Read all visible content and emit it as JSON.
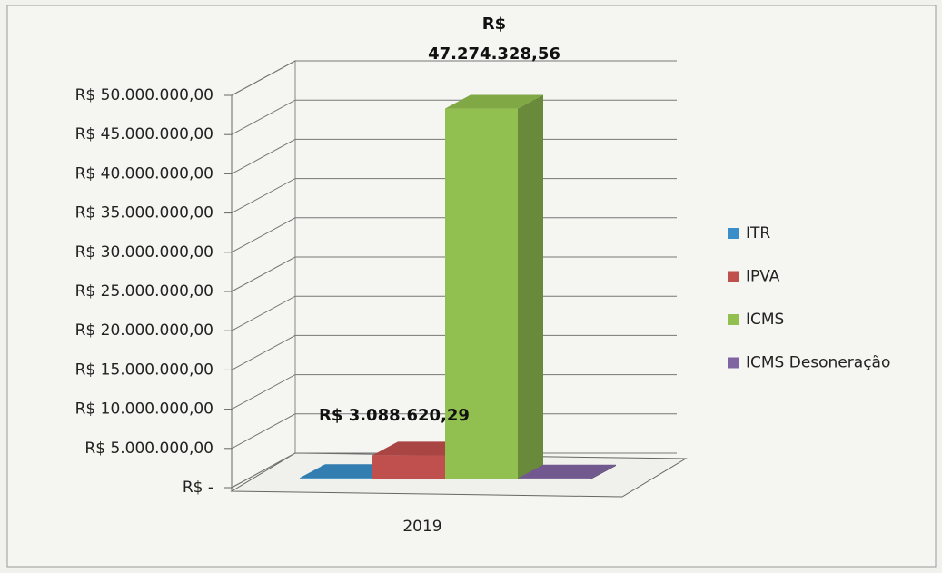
{
  "chart_data": {
    "type": "bar",
    "categories": [
      "2019"
    ],
    "series": [
      {
        "name": "ITR",
        "color": "#3a8fc8",
        "values": [
          200000
        ]
      },
      {
        "name": "IPVA",
        "color": "#c0504d",
        "values": [
          3088620.29
        ],
        "value_labels": [
          "R$ 3.088.620,29"
        ]
      },
      {
        "name": "ICMS",
        "color": "#92c050",
        "values": [
          47274328.56
        ],
        "value_labels": [
          "R$ 47.274.328,56"
        ]
      },
      {
        "name": "ICMS Desoneração",
        "color": "#8064a2",
        "values": [
          150000
        ]
      }
    ],
    "ylim": [
      0,
      50000000
    ],
    "yticks": [
      {
        "value": 0,
        "label": "R$ -"
      },
      {
        "value": 5000000,
        "label": "R$ 5.000.000,00"
      },
      {
        "value": 10000000,
        "label": "R$ 10.000.000,00"
      },
      {
        "value": 15000000,
        "label": "R$ 15.000.000,00"
      },
      {
        "value": 20000000,
        "label": "R$ 20.000.000,00"
      },
      {
        "value": 25000000,
        "label": "R$ 25.000.000,00"
      },
      {
        "value": 30000000,
        "label": "R$ 30.000.000,00"
      },
      {
        "value": 35000000,
        "label": "R$ 35.000.000,00"
      },
      {
        "value": 40000000,
        "label": "R$ 40.000.000,00"
      },
      {
        "value": 45000000,
        "label": "R$ 45.000.000,00"
      },
      {
        "value": 50000000,
        "label": "R$ 50.000.000,00"
      }
    ],
    "grid": true,
    "legend": "right"
  }
}
